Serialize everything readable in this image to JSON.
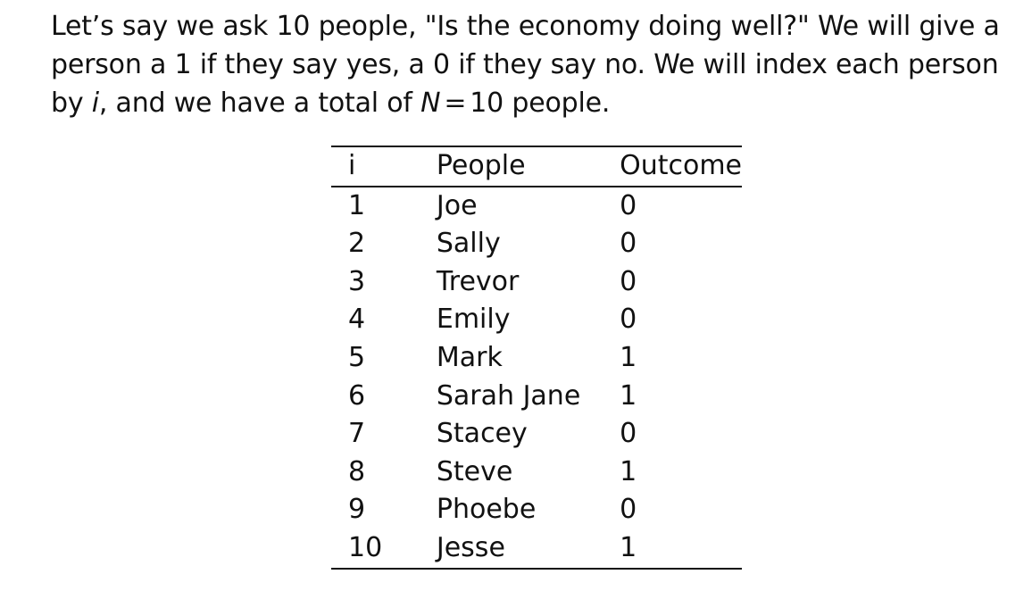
{
  "intro": {
    "part1": "Let’s say we ask 10 people, \"Is the economy doing well?\" We will give a person a 1 if they say yes, a 0 if they say no. We will index each person by ",
    "var_i": "i",
    "part2": ", and we have a total of ",
    "var_n": "N",
    "equals": "=",
    "part3": "10 people."
  },
  "table": {
    "headers": {
      "i": "i",
      "people": "People",
      "outcome": "Outcome"
    },
    "rows": [
      {
        "i": "1",
        "people": "Joe",
        "outcome": "0"
      },
      {
        "i": "2",
        "people": "Sally",
        "outcome": "0"
      },
      {
        "i": "3",
        "people": "Trevor",
        "outcome": "0"
      },
      {
        "i": "4",
        "people": "Emily",
        "outcome": "0"
      },
      {
        "i": "5",
        "people": "Mark",
        "outcome": "1"
      },
      {
        "i": "6",
        "people": "Sarah Jane",
        "outcome": "1"
      },
      {
        "i": "7",
        "people": "Stacey",
        "outcome": "0"
      },
      {
        "i": "8",
        "people": "Steve",
        "outcome": "1"
      },
      {
        "i": "9",
        "people": "Phoebe",
        "outcome": "0"
      },
      {
        "i": "10",
        "people": "Jesse",
        "outcome": "1"
      }
    ]
  }
}
